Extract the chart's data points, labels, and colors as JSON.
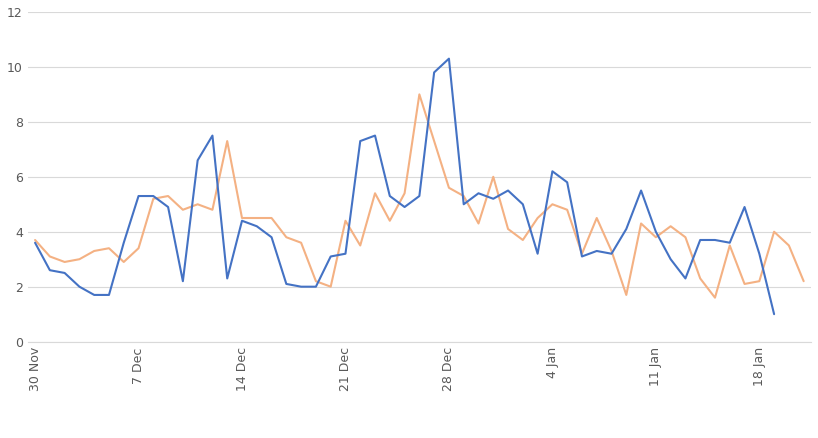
{
  "series_2019_2020": [
    3.7,
    3.1,
    2.9,
    3.0,
    3.3,
    3.4,
    2.9,
    3.4,
    5.2,
    5.3,
    4.8,
    5.0,
    4.8,
    7.3,
    4.5,
    4.5,
    4.5,
    3.8,
    3.6,
    2.2,
    2.0,
    4.4,
    3.5,
    5.4,
    4.4,
    5.4,
    9.0,
    7.3,
    5.6,
    5.3,
    4.3,
    6.0,
    4.1,
    3.7,
    4.5,
    5.0,
    4.8,
    3.2,
    4.5,
    3.3,
    1.7,
    4.3,
    3.8,
    4.2,
    3.8,
    2.3,
    1.6,
    3.5,
    2.1,
    2.2,
    4.0,
    3.5,
    2.2
  ],
  "series_2020_2021": [
    3.6,
    2.6,
    2.5,
    2.0,
    1.7,
    1.7,
    3.6,
    5.3,
    5.3,
    4.9,
    2.2,
    6.6,
    7.5,
    2.3,
    4.4,
    4.2,
    3.8,
    2.1,
    2.0,
    2.0,
    3.1,
    3.2,
    7.3,
    7.5,
    5.3,
    4.9,
    5.3,
    9.8,
    10.3,
    5.0,
    5.4,
    5.2,
    5.5,
    5.0,
    3.2,
    6.2,
    5.8,
    3.1,
    3.3,
    3.2,
    4.1,
    5.5,
    4.0,
    3.0,
    2.3,
    3.7,
    3.7,
    3.6,
    4.9,
    3.2,
    1.0
  ],
  "color_2019_2020": "#f4b183",
  "color_2020_2021": "#4472c4",
  "tick_labels": [
    "30 Nov",
    "7 Dec",
    "14 Dec",
    "21 Dec",
    "28 Dec",
    "4 Jan",
    "11 Jan",
    "18 Jan"
  ],
  "tick_positions": [
    0,
    7,
    14,
    21,
    28,
    35,
    42,
    49
  ],
  "ylim": [
    0,
    12
  ],
  "yticks": [
    0,
    2,
    4,
    6,
    8,
    10,
    12
  ],
  "linewidth": 1.5,
  "n_points_2019": 53,
  "n_points_2020": 51
}
